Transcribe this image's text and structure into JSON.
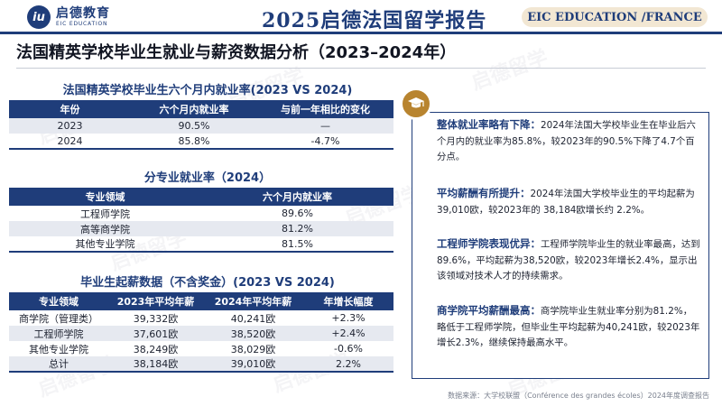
{
  "header": {
    "logo_cn": "启德教育",
    "logo_en": "EIC EDUCATION",
    "title": "2025启德法国留学报告",
    "badge": "EIC EDUCATION /FRANCE"
  },
  "page_title": "法国精英学校毕业生就业与薪资数据分析（2023–2024年）",
  "employment": {
    "title": "法国精英学校毕业生六个月内就业率(2023 VS 2024)",
    "headers": [
      "年份",
      "六个月内就业率",
      "与前一年相比的变化"
    ],
    "rows": [
      [
        "2023",
        "90.5%",
        "—"
      ],
      [
        "2024",
        "85.8%",
        "-4.7%"
      ]
    ]
  },
  "by_field": {
    "title": "分专业就业率（2024）",
    "headers": [
      "专业领域",
      "六个月内就业率"
    ],
    "rows": [
      [
        "工程师学院",
        "89.6%"
      ],
      [
        "高等商学院",
        "81.2%"
      ],
      [
        "其他专业学院",
        "81.5%"
      ]
    ]
  },
  "salary": {
    "title": "毕业生起薪数据（不含奖金）(2023 VS 2024)",
    "headers": [
      "专业领域",
      "2023年平均年薪",
      "2024年平均年薪",
      "年增长幅度"
    ],
    "rows": [
      [
        "商学院（管理类）",
        "39,332欧",
        "40,241欧",
        "+2.3%"
      ],
      [
        "工程师学院",
        "37,601欧",
        "38,520欧",
        "+2.4%"
      ],
      [
        "其他专业学院",
        "38,249欧",
        "38,029欧",
        "-0.6%"
      ],
      [
        "总计",
        "38,184欧",
        "39,010欧",
        "2.2%"
      ]
    ]
  },
  "panel": {
    "icon": "graduation-cap-icon",
    "items": [
      {
        "heading": "整体就业率略有下降：",
        "text": "2024年法国大学校毕业生在毕业后六个月内的就业率为85.8%，较2023年的90.5%下降了4.7个百分点。"
      },
      {
        "heading": "平均薪酬有所提升：",
        "text": "2024年法国大学校毕业生的平均起薪为 39,010欧，较2023年的 38,184欧增长约 2.2%。"
      },
      {
        "heading": "工程师学院表现优异：",
        "text": "工程师学院毕业生的就业率最高，达到89.6%，平均起薪为38,520欧，较2023年增长2.4%，显示出该领域对技术人才的持续需求。"
      },
      {
        "heading": "商学院平均薪酬最高：",
        "text": "商学院毕业生就业率分别为81.2%，略低于工程师学院，但毕业生平均起薪为40,241欧，较2023年增长2.3%，继续保持最高水平。"
      }
    ]
  },
  "footer": "数据来源：大学校联盟（Conférence des grandes écoles）2024年度调查报告",
  "colors": {
    "primary": "#1f3d7a",
    "accent": "#b8842f",
    "badge_bg": "#f2e7d3",
    "alt_row": "#e6e9f0"
  }
}
